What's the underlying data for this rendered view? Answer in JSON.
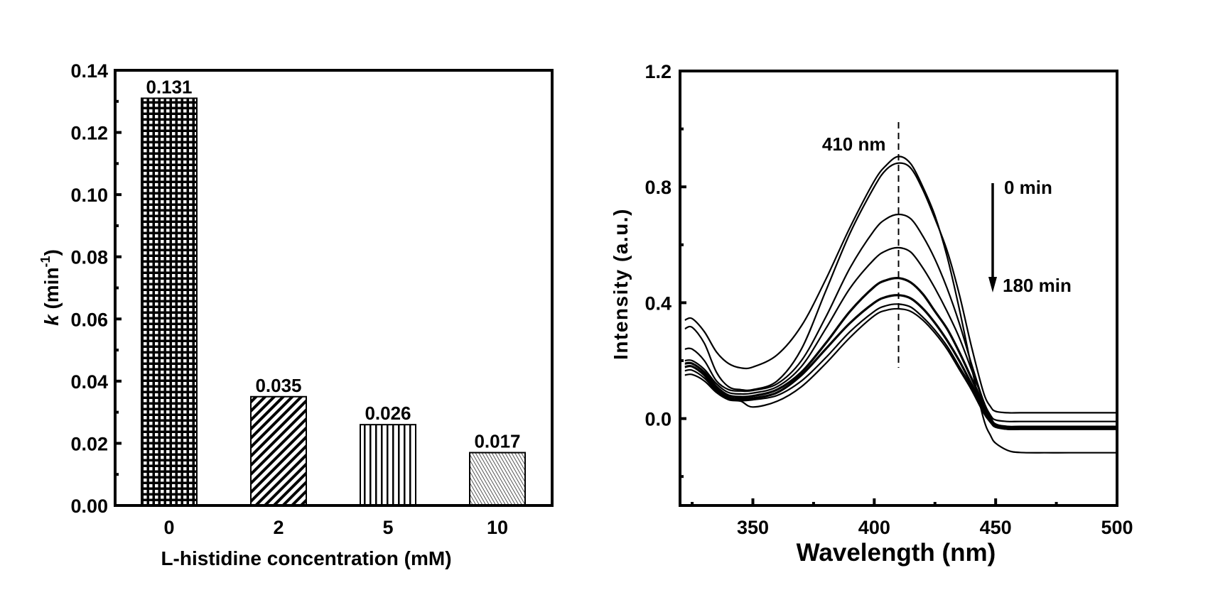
{
  "chart_data": [
    {
      "type": "bar",
      "title": "",
      "xlabel": "L-histidine concentration (mM)",
      "ylabel_main": "k",
      "ylabel_unit_open": " (min",
      "ylabel_unit_sup": "-1",
      "ylabel_unit_close": ")",
      "categories": [
        "0",
        "2",
        "5",
        "10"
      ],
      "values": [
        0.131,
        0.035,
        0.026,
        0.017
      ],
      "data_labels": [
        "0.131",
        "0.035",
        "0.026",
        "0.017"
      ],
      "patterns": [
        "grid",
        "diagonal",
        "vertical",
        "fine-diagonal"
      ],
      "ylim": [
        0,
        0.14
      ],
      "yticks": [
        0.0,
        0.02,
        0.04,
        0.06,
        0.08,
        0.1,
        0.12,
        0.14
      ],
      "ytick_labels": [
        "0.00",
        "0.02",
        "0.04",
        "0.06",
        "0.08",
        "0.10",
        "0.12",
        "0.14"
      ],
      "grid": false
    },
    {
      "type": "line",
      "title": "",
      "xlabel": "Wavelength (nm)",
      "ylabel": "Intensity (a.u.)",
      "xlim": [
        320,
        500
      ],
      "ylim": [
        -0.3,
        1.2
      ],
      "xticks": [
        350,
        400,
        450,
        500
      ],
      "xtick_labels": [
        "350",
        "400",
        "450",
        "500"
      ],
      "yticks": [
        0.0,
        0.4,
        0.8,
        1.2
      ],
      "ytick_labels": [
        "0.0",
        "0.4",
        "0.8",
        "1.2"
      ],
      "grid": false,
      "annotations": {
        "peak_label": "410 nm",
        "peak_wavelength": 410,
        "arrow_start_label": "0 min",
        "arrow_end_label": "180 min"
      },
      "series": [
        {
          "name": "curve-1",
          "x": [
            322,
            325,
            330,
            335,
            340,
            345,
            350,
            360,
            370,
            380,
            390,
            400,
            405,
            410,
            415,
            420,
            425,
            430,
            435,
            440,
            445,
            448,
            450,
            455,
            460,
            470,
            480,
            490,
            500
          ],
          "y": [
            0.34,
            0.345,
            0.3,
            0.23,
            0.19,
            0.175,
            0.178,
            0.22,
            0.32,
            0.48,
            0.66,
            0.82,
            0.875,
            0.905,
            0.88,
            0.8,
            0.7,
            0.56,
            0.38,
            0.18,
            0.0,
            -0.06,
            -0.085,
            -0.11,
            -0.117,
            -0.118,
            -0.118,
            -0.118,
            -0.118
          ]
        },
        {
          "name": "curve-2",
          "x": [
            322,
            325,
            330,
            335,
            340,
            345,
            350,
            360,
            370,
            380,
            390,
            400,
            405,
            410,
            415,
            420,
            425,
            430,
            435,
            440,
            445,
            448,
            450,
            455,
            460,
            470,
            480,
            490,
            500
          ],
          "y": [
            0.31,
            0.315,
            0.26,
            0.16,
            0.11,
            0.1,
            0.1,
            0.13,
            0.24,
            0.44,
            0.64,
            0.8,
            0.86,
            0.882,
            0.865,
            0.79,
            0.69,
            0.58,
            0.43,
            0.25,
            0.09,
            0.04,
            0.025,
            0.02,
            0.02,
            0.02,
            0.02,
            0.02,
            0.02
          ]
        },
        {
          "name": "curve-3",
          "x": [
            322,
            325,
            330,
            335,
            340,
            345,
            350,
            360,
            370,
            380,
            390,
            400,
            405,
            410,
            415,
            420,
            425,
            430,
            435,
            440,
            445,
            448,
            450,
            455,
            460,
            470,
            480,
            490,
            500
          ],
          "y": [
            0.24,
            0.24,
            0.2,
            0.13,
            0.1,
            0.095,
            0.097,
            0.12,
            0.2,
            0.35,
            0.52,
            0.65,
            0.69,
            0.705,
            0.69,
            0.63,
            0.55,
            0.45,
            0.33,
            0.19,
            0.06,
            0.01,
            -0.005,
            -0.01,
            -0.01,
            -0.01,
            -0.01,
            -0.01,
            -0.01
          ]
        },
        {
          "name": "curve-4",
          "x": [
            322,
            325,
            330,
            335,
            340,
            345,
            350,
            360,
            370,
            380,
            390,
            400,
            405,
            410,
            415,
            420,
            425,
            430,
            435,
            440,
            445,
            448,
            450,
            455,
            460,
            470,
            480,
            490,
            500
          ],
          "y": [
            0.2,
            0.2,
            0.17,
            0.12,
            0.09,
            0.085,
            0.088,
            0.11,
            0.18,
            0.31,
            0.45,
            0.55,
            0.58,
            0.59,
            0.575,
            0.52,
            0.45,
            0.37,
            0.28,
            0.17,
            0.06,
            0.0,
            -0.02,
            -0.027,
            -0.027,
            -0.027,
            -0.027,
            -0.027,
            -0.027
          ]
        },
        {
          "name": "curve-5",
          "x": [
            322,
            325,
            330,
            335,
            340,
            345,
            350,
            360,
            370,
            380,
            390,
            400,
            405,
            410,
            415,
            420,
            425,
            430,
            435,
            440,
            445,
            448,
            450,
            455,
            460,
            470,
            480,
            490,
            500
          ],
          "y": [
            0.19,
            0.19,
            0.16,
            0.11,
            0.08,
            0.075,
            0.078,
            0.1,
            0.16,
            0.26,
            0.37,
            0.455,
            0.478,
            0.485,
            0.47,
            0.43,
            0.37,
            0.31,
            0.23,
            0.14,
            0.05,
            0.0,
            -0.02,
            -0.03,
            -0.03,
            -0.03,
            -0.03,
            -0.03,
            -0.03
          ]
        },
        {
          "name": "curve-6",
          "x": [
            322,
            325,
            330,
            335,
            340,
            345,
            350,
            360,
            370,
            380,
            390,
            400,
            405,
            410,
            415,
            420,
            425,
            430,
            435,
            440,
            445,
            448,
            450,
            455,
            460,
            470,
            480,
            490,
            500
          ],
          "y": [
            0.178,
            0.18,
            0.15,
            0.1,
            0.072,
            0.068,
            0.07,
            0.09,
            0.15,
            0.24,
            0.33,
            0.4,
            0.42,
            0.426,
            0.415,
            0.38,
            0.33,
            0.27,
            0.2,
            0.12,
            0.04,
            -0.01,
            -0.025,
            -0.035,
            -0.035,
            -0.035,
            -0.035,
            -0.035,
            -0.035
          ]
        },
        {
          "name": "curve-7",
          "x": [
            322,
            325,
            330,
            335,
            340,
            345,
            350,
            360,
            370,
            380,
            390,
            400,
            405,
            410,
            415,
            420,
            425,
            430,
            435,
            440,
            445,
            448,
            450,
            455,
            460,
            470,
            480,
            490,
            500
          ],
          "y": [
            0.165,
            0.167,
            0.14,
            0.095,
            0.068,
            0.062,
            0.065,
            0.08,
            0.13,
            0.21,
            0.3,
            0.37,
            0.39,
            0.395,
            0.385,
            0.35,
            0.305,
            0.25,
            0.18,
            0.11,
            0.03,
            -0.01,
            -0.028,
            -0.037,
            -0.037,
            -0.037,
            -0.037,
            -0.037,
            -0.037
          ]
        },
        {
          "name": "curve-8",
          "x": [
            322,
            325,
            330,
            335,
            340,
            345,
            350,
            360,
            370,
            380,
            390,
            400,
            405,
            410,
            415,
            420,
            425,
            430,
            435,
            440,
            445,
            448,
            450,
            455,
            460,
            470,
            480,
            490,
            500
          ],
          "y": [
            0.15,
            0.152,
            0.13,
            0.09,
            0.065,
            0.06,
            0.04,
            0.06,
            0.11,
            0.19,
            0.28,
            0.355,
            0.374,
            0.379,
            0.37,
            0.34,
            0.295,
            0.24,
            0.17,
            0.1,
            0.02,
            -0.015,
            -0.03,
            -0.037,
            -0.037,
            -0.037,
            -0.037,
            -0.037,
            -0.037
          ]
        }
      ]
    }
  ]
}
